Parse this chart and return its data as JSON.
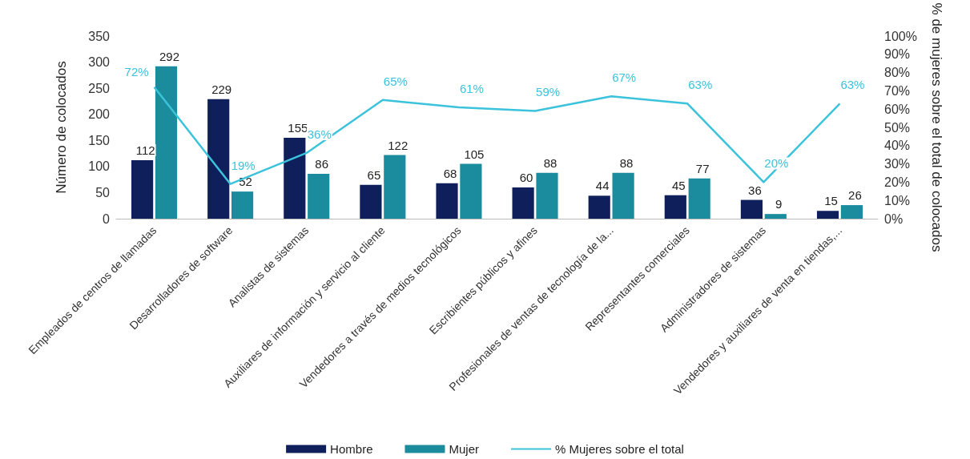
{
  "chart_data": {
    "type": "bar",
    "ylabel": "Número de colocados",
    "y2label": "% de mujeres sobre el total de colocados",
    "categories": [
      "Empleados de centros de llamadas",
      "Desarrolladores de software",
      "Analistas de sistemas",
      "Auxiliares de información y servicio al cliente",
      "Vendedores a través de medios tecnológicos",
      "Escribientes públicos y afines",
      "Profesionales de ventas de tecnología de la...",
      "Representantes comerciales",
      "Administradores de sistemas",
      "Vendedores y auxiliares de venta en tiendas,..."
    ],
    "series": [
      {
        "name": "Hombre",
        "color": "#0e1f5b",
        "values": [
          112,
          229,
          155,
          65,
          68,
          60,
          44,
          45,
          36,
          15
        ],
        "data_labels": true
      },
      {
        "name": "Mujer",
        "color": "#1a8c9e",
        "values": [
          292,
          52,
          86,
          122,
          105,
          88,
          88,
          77,
          9,
          26
        ],
        "data_labels": true
      },
      {
        "name": "% Mujeres sobre el total",
        "type": "line",
        "axis": "y2",
        "color": "#3cc3dc",
        "values": [
          72,
          19,
          36,
          65,
          61,
          59,
          67,
          63,
          20,
          63
        ],
        "value_labels": [
          "72%",
          "19%",
          "36%",
          "65%",
          "61%",
          "59%",
          "67%",
          "63%",
          "20%",
          "63%"
        ]
      }
    ],
    "ylim": [
      0,
      350
    ],
    "yticks": [
      0,
      50,
      100,
      150,
      200,
      250,
      300,
      350
    ],
    "y2lim": [
      0,
      100
    ],
    "y2ticks": [
      {
        "value": 0,
        "label": "0%"
      },
      {
        "value": 10,
        "label": "10%"
      },
      {
        "value": 20,
        "label": "20%"
      },
      {
        "value": 30,
        "label": "30%"
      },
      {
        "value": 40,
        "label": "40%"
      },
      {
        "value": 50,
        "label": "50%"
      },
      {
        "value": 60,
        "label": "60%"
      },
      {
        "value": 70,
        "label": "70%"
      },
      {
        "value": 80,
        "label": "80%"
      },
      {
        "value": 90,
        "label": "90%"
      },
      {
        "value": 100,
        "label": "100%"
      }
    ],
    "grid": false,
    "legend": "bottom",
    "marker": "none",
    "line_style": "solid"
  }
}
